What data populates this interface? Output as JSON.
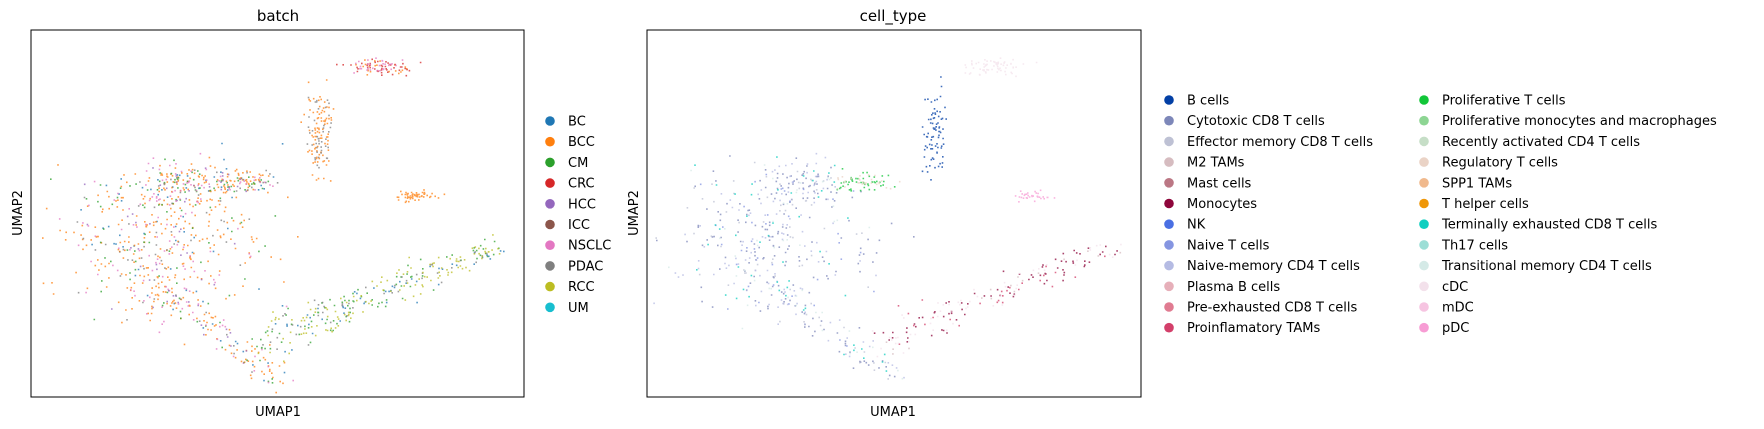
{
  "chart_data": [
    {
      "type": "scatter",
      "title": "batch",
      "xlabel": "UMAP1",
      "ylabel": "UMAP2",
      "grid": false,
      "ticks": false,
      "legend_position": "right",
      "legend_columns": 1,
      "series": [
        {
          "name": "BC",
          "color": "#1f77b4"
        },
        {
          "name": "BCC",
          "color": "#ff7f0e"
        },
        {
          "name": "CM",
          "color": "#2ca02c"
        },
        {
          "name": "CRC",
          "color": "#d62728"
        },
        {
          "name": "HCC",
          "color": "#9467bd"
        },
        {
          "name": "ICC",
          "color": "#8c564b"
        },
        {
          "name": "NSCLC",
          "color": "#e377c2"
        },
        {
          "name": "PDAC",
          "color": "#7f7f7f"
        },
        {
          "name": "RCC",
          "color": "#bcbd22"
        },
        {
          "name": "UM",
          "color": "#17becf"
        }
      ]
    },
    {
      "type": "scatter",
      "title": "cell_type",
      "xlabel": "UMAP1",
      "ylabel": "UMAP2",
      "grid": false,
      "ticks": false,
      "legend_position": "right",
      "legend_columns": 2,
      "series": [
        {
          "name": "B cells",
          "color": "#023fa5"
        },
        {
          "name": "Cytotoxic CD8 T cells",
          "color": "#7d87b9"
        },
        {
          "name": "Effector memory CD8 T cells",
          "color": "#bec1d4"
        },
        {
          "name": "M2 TAMs",
          "color": "#d6bcc0"
        },
        {
          "name": "Mast cells",
          "color": "#bb7784"
        },
        {
          "name": "Monocytes",
          "color": "#8e063b"
        },
        {
          "name": "NK",
          "color": "#4a6fe3"
        },
        {
          "name": "Naive T cells",
          "color": "#8595e1"
        },
        {
          "name": "Naive-memory CD4 T cells",
          "color": "#b5bbe3"
        },
        {
          "name": "Plasma B cells",
          "color": "#e6afb9"
        },
        {
          "name": "Pre-exhausted CD8 T cells",
          "color": "#e07b91"
        },
        {
          "name": "Proinflamatory TAMs",
          "color": "#d33f6a"
        },
        {
          "name": "Proliferative T cells",
          "color": "#11c638"
        },
        {
          "name": "Proliferative monocytes and macrophages",
          "color": "#8dd593"
        },
        {
          "name": "Recently activated CD4 T cells",
          "color": "#c6dec7"
        },
        {
          "name": "Regulatory T cells",
          "color": "#ead3c6"
        },
        {
          "name": "SPP1 TAMs",
          "color": "#f0b98d"
        },
        {
          "name": "T helper cells",
          "color": "#ef9708"
        },
        {
          "name": "Terminally exhausted CD8 T cells",
          "color": "#0fcfc0"
        },
        {
          "name": "Th17 cells",
          "color": "#9cded6"
        },
        {
          "name": "Transitional memory CD4 T cells",
          "color": "#d5eae7"
        },
        {
          "name": "cDC",
          "color": "#f3e1eb"
        },
        {
          "name": "mDC",
          "color": "#f6c4e1"
        },
        {
          "name": "pDC",
          "color": "#f79cd4"
        }
      ]
    }
  ]
}
